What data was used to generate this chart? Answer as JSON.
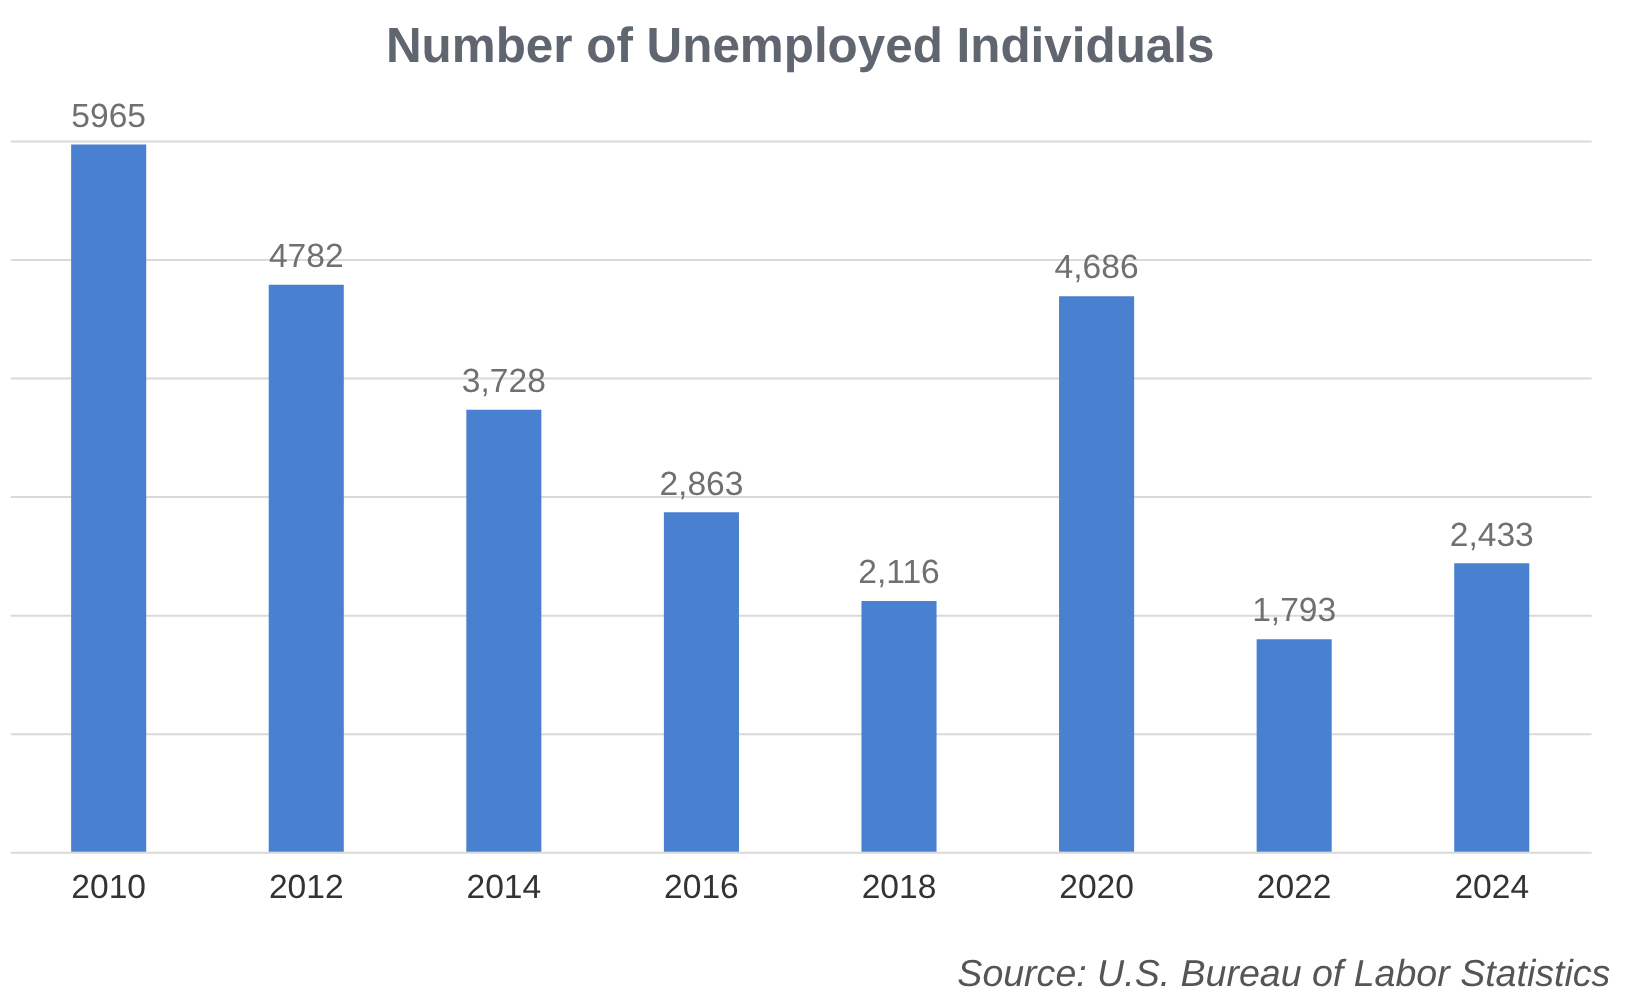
{
  "chart_data": {
    "type": "bar",
    "title": "Number of Unemployed Individuals",
    "categories": [
      "2010",
      "2012",
      "2014",
      "2016",
      "2018",
      "2020",
      "2022",
      "2024"
    ],
    "values": [
      5965,
      4782,
      3728,
      2863,
      2116,
      4686,
      1793,
      2433
    ],
    "value_labels": [
      "5965",
      "4782",
      "3,728",
      "2,863",
      "2,116",
      "4,686",
      "1,793",
      "2,433"
    ],
    "color": "#4a80d0",
    "ylim": [
      0,
      6000
    ],
    "yticks": [
      {
        "value": 0,
        "label": null
      },
      {
        "value": 1000,
        "label": null
      },
      {
        "value": 2000,
        "label": null
      },
      {
        "value": 3000,
        "label": null
      },
      {
        "value": 4000,
        "label": null
      },
      {
        "value": 5000,
        "label": null
      },
      {
        "value": 6000,
        "label": null
      }
    ],
    "tick_labels": "x",
    "grid": "y",
    "annotations": [
      "Source: U.S. Bureau of Labor Statistics"
    ]
  }
}
